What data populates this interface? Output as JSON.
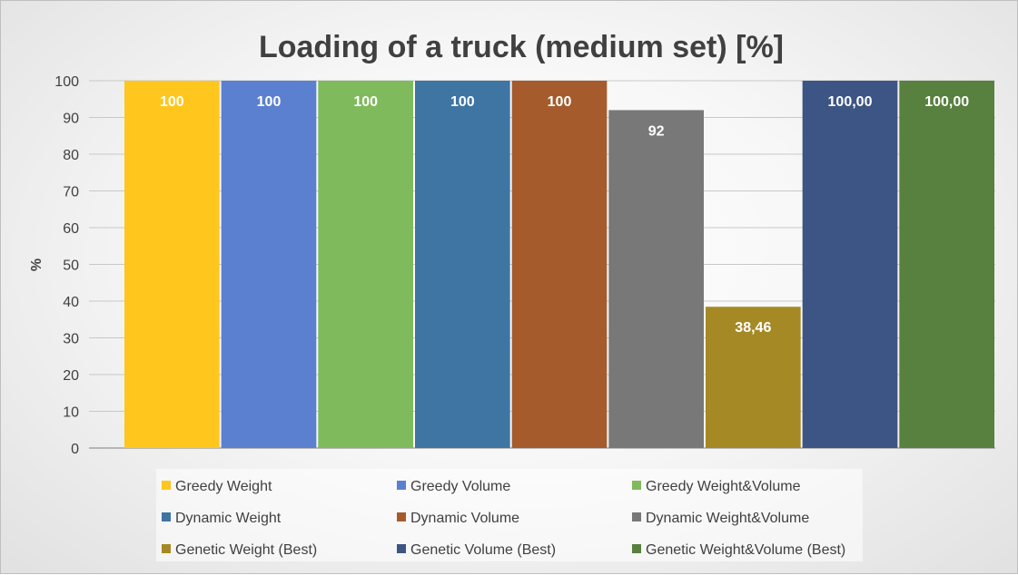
{
  "chart_data": {
    "type": "bar",
    "title": "Loading of a truck (medium set) [%]",
    "xlabel": "",
    "ylabel": "%",
    "ylim": [
      0,
      100
    ],
    "yticks": [
      0,
      10,
      20,
      30,
      40,
      50,
      60,
      70,
      80,
      90,
      100
    ],
    "grid": true,
    "legend_position": "bottom",
    "series": [
      {
        "name": "Greedy Weight",
        "value": 100,
        "label": "100",
        "color": "#FFC61E"
      },
      {
        "name": "Greedy Volume",
        "value": 100,
        "label": "100",
        "color": "#5B80D0"
      },
      {
        "name": "Greedy Weight&Volume",
        "value": 100,
        "label": "100",
        "color": "#7FBA5C"
      },
      {
        "name": "Dynamic Weight",
        "value": 100,
        "label": "100",
        "color": "#3E75A3"
      },
      {
        "name": "Dynamic Volume",
        "value": 100,
        "label": "100",
        "color": "#A65B2D"
      },
      {
        "name": "Dynamic Weight&Volume",
        "value": 92,
        "label": "92",
        "color": "#787878"
      },
      {
        "name": "Genetic Weight (Best)",
        "value": 38.46,
        "label": "38,46",
        "color": "#A58925"
      },
      {
        "name": "Genetic Volume (Best)",
        "value": 100,
        "label": "100,00",
        "color": "#3D5584"
      },
      {
        "name": "Genetic Weight&Volume (Best)",
        "value": 100,
        "label": "100,00",
        "color": "#58803E"
      }
    ]
  }
}
